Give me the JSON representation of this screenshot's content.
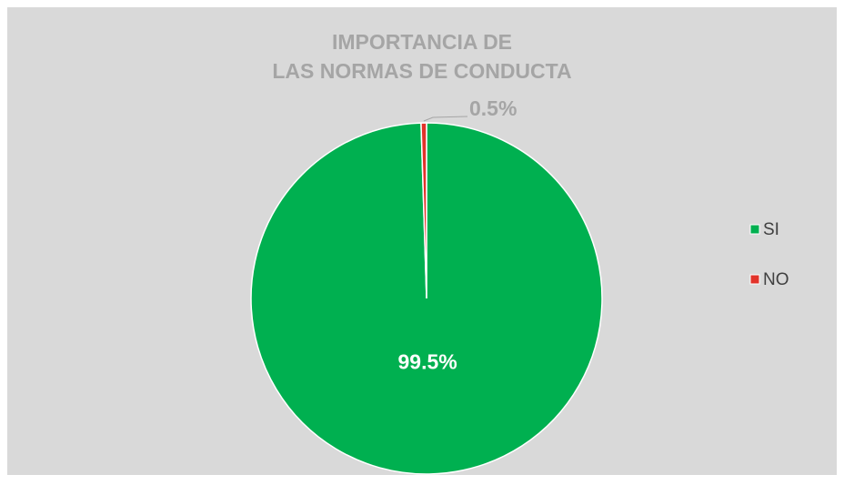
{
  "chart_data": {
    "type": "pie",
    "title": "IMPORTANCIA DE\nLAS NORMAS DE CONDUCTA",
    "categories": [
      "SI",
      "NO"
    ],
    "values": [
      99.5,
      0.5
    ],
    "value_labels": [
      "99.5%",
      "0.5%"
    ],
    "colors": [
      "#00b050",
      "#e2332a"
    ],
    "legend": "right"
  }
}
